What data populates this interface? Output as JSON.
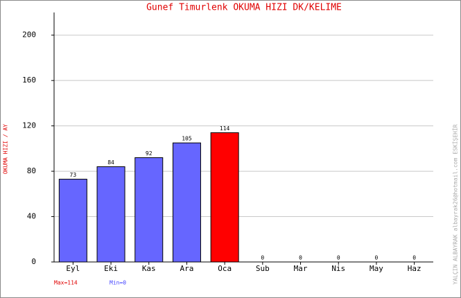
{
  "chart_data": {
    "type": "bar",
    "title": "Gunef Timurlenk   OKUMA HIZI  DK/KELIME",
    "y_label": "OKUMA HIZI / AY",
    "side_note": "YALÇIN ALBAYRAK  albayrak26@hotmail.com  ESKİŞEHİR",
    "max_note": "Max=114",
    "min_note": "Min=0",
    "categories": [
      "Eyl",
      "Eki",
      "Kas",
      "Ara",
      "Oca",
      "Sub",
      "Mar",
      "Nis",
      "May",
      "Haz"
    ],
    "values": [
      73,
      84,
      92,
      105,
      114,
      0,
      0,
      0,
      0,
      0
    ],
    "colors": [
      "#6666ff",
      "#6666ff",
      "#6666ff",
      "#6666ff",
      "#ff0000",
      "#6666ff",
      "#6666ff",
      "#6666ff",
      "#6666ff",
      "#6666ff"
    ],
    "ylim": [
      0,
      220
    ],
    "yticks": [
      0,
      40,
      80,
      120,
      160,
      200
    ],
    "grid": true
  }
}
